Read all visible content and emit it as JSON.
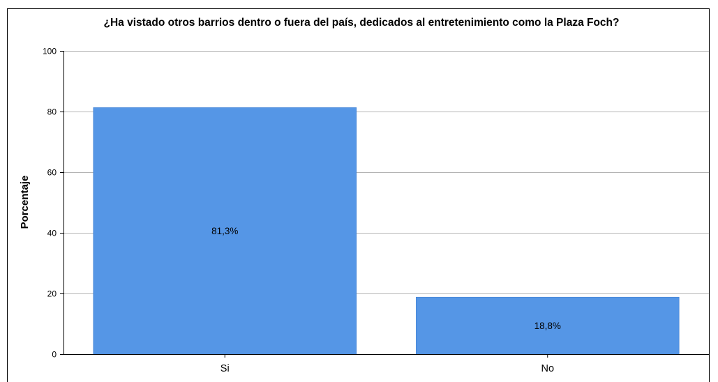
{
  "chart_data": {
    "type": "bar",
    "title": "¿Ha vistado otros barrios dentro o fuera del país, dedicados al entretenimiento como la Plaza Foch?",
    "xlabel": "",
    "ylabel": "Porcentaje",
    "categories": [
      "Si",
      "No"
    ],
    "values": [
      81.3,
      18.8
    ],
    "value_labels": [
      "81,3%",
      "18,8%"
    ],
    "ylim": [
      0,
      100
    ],
    "yticks": [
      0,
      20,
      40,
      60,
      80,
      100
    ],
    "ytick_labels": [
      "0",
      "20",
      "40",
      "60",
      "80",
      "100"
    ],
    "grid": true,
    "legend": "none",
    "bar_color": "#5596E6",
    "gridline_color": "#b4b4b4"
  }
}
